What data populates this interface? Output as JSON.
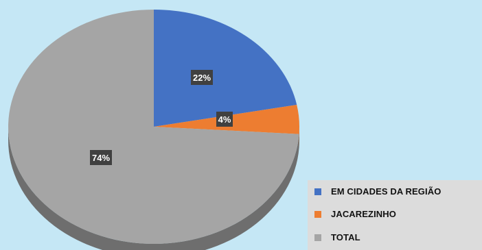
{
  "chart_data": {
    "type": "pie",
    "style": "3d",
    "categories": [
      "EM CIDADES DA REGIÃO",
      "JACAREZINHO",
      "TOTAL"
    ],
    "values": [
      22,
      4,
      74
    ],
    "data_labels": [
      "22%",
      "4%",
      "74%"
    ],
    "colors": [
      "#4472c4",
      "#ed7d31",
      "#a5a5a5"
    ],
    "side_colors": [
      "#2f528f",
      "#b85d1f",
      "#6e6e6e"
    ],
    "legend_placement": "bottom-right",
    "start_angle_deg": 0,
    "direction": "clockwise"
  }
}
